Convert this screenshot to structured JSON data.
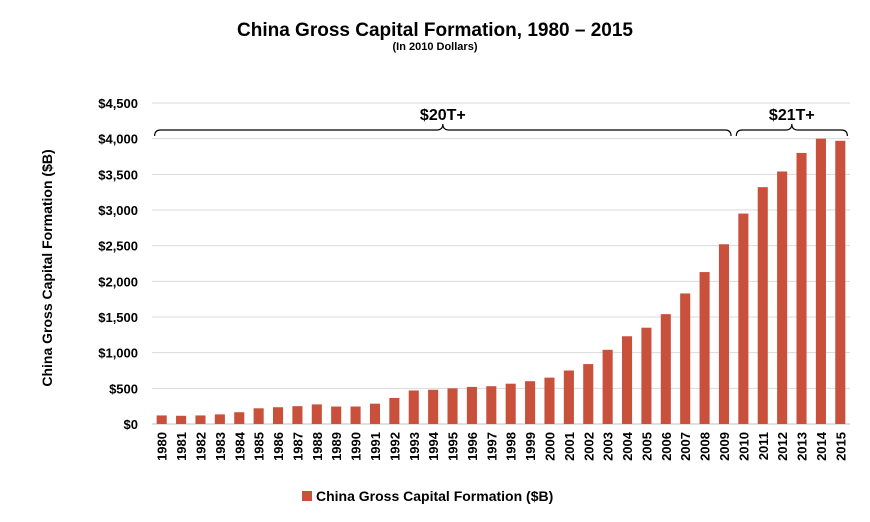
{
  "chart_data": {
    "type": "bar",
    "title": "China Gross Capital Formation, 1980 – 2015",
    "subtitle": "(In 2010 Dollars)",
    "xlabel": "",
    "ylabel": "China Gross Capital Formation ($B)",
    "ylim": [
      0,
      4500
    ],
    "yticks": [
      0,
      500,
      1000,
      1500,
      2000,
      2500,
      3000,
      3500,
      4000,
      4500
    ],
    "ytick_labels": [
      "$0",
      "$500",
      "$1,000",
      "$1,500",
      "$2,000",
      "$2,500",
      "$3,000",
      "$3,500",
      "$4,000",
      "$4,500"
    ],
    "grid": true,
    "legend_position": "bottom",
    "bar_color": "#C9503B",
    "categories": [
      "1980",
      "1981",
      "1982",
      "1983",
      "1984",
      "1985",
      "1986",
      "1987",
      "1988",
      "1989",
      "1990",
      "1991",
      "1992",
      "1993",
      "1994",
      "1995",
      "1996",
      "1997",
      "1998",
      "1999",
      "2000",
      "2001",
      "2002",
      "2003",
      "2004",
      "2005",
      "2006",
      "2007",
      "2008",
      "2009",
      "2010",
      "2011",
      "2012",
      "2013",
      "2014",
      "2015"
    ],
    "series": [
      {
        "name": "China Gross Capital Formation ($B)",
        "values": [
          120,
          115,
          120,
          135,
          165,
          220,
          235,
          250,
          275,
          245,
          245,
          285,
          365,
          470,
          480,
          500,
          520,
          530,
          565,
          600,
          650,
          750,
          840,
          1040,
          1230,
          1350,
          1540,
          1830,
          2130,
          2520,
          2950,
          3320,
          3540,
          3800,
          4000,
          3970
        ]
      }
    ],
    "annotations": [
      {
        "text": "$20T+",
        "from": "1980",
        "to": "2009"
      },
      {
        "text": "$21T+",
        "from": "2010",
        "to": "2015"
      }
    ]
  }
}
